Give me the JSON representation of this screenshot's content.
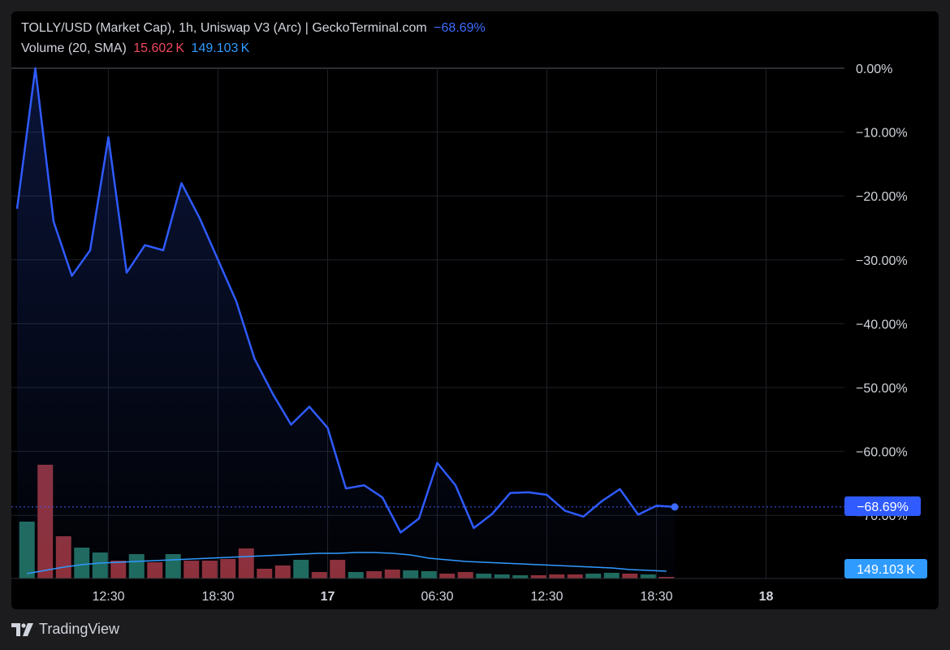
{
  "legend": {
    "title": "TOLLY/USD (Market Cap), 1h, Uniswap V3 (Arc) | GeckoTerminal.com",
    "change": "−68.69%",
    "volume_label": "Volume (20, SMA)",
    "volume_value": "15.602 K",
    "volume_sma": "149.103 K"
  },
  "footer": {
    "brand": "TradingView"
  },
  "badges": {
    "price": "−68.69%",
    "volume": "149.103 K"
  },
  "colors": {
    "line": "#2f5bff",
    "bull": "#1f6b5c",
    "bear": "#8e3038",
    "sma": "#2f9bff",
    "grid": "#1f2128"
  },
  "chart_data": {
    "type": "line",
    "y_ticks": [
      "0.00%",
      "−10.00%",
      "−20.00%",
      "−30.00%",
      "−40.00%",
      "−50.00%",
      "−60.00%",
      "−70.00%"
    ],
    "x_ticks": [
      {
        "label": "12:30",
        "index": 5,
        "bold": false
      },
      {
        "label": "18:30",
        "index": 11,
        "bold": false
      },
      {
        "label": "17",
        "index": 17,
        "bold": true
      },
      {
        "label": "06:30",
        "index": 23,
        "bold": false
      },
      {
        "label": "12:30",
        "index": 29,
        "bold": false
      },
      {
        "label": "18:30",
        "index": 35,
        "bold": false
      },
      {
        "label": "18",
        "index": 41,
        "bold": true
      }
    ],
    "ylim": [
      -80,
      0
    ],
    "series": [
      {
        "values": [
          -22,
          0,
          -24,
          -32.5,
          -28.5,
          -10.8,
          -32,
          -27.7,
          -28.5,
          -18,
          -23.5,
          -30,
          -36.5,
          -45.5,
          -51,
          -55.8,
          -53,
          -56.3,
          -65.8,
          -65.3,
          -67.2,
          -72.7,
          -70.5,
          -61.8,
          -65.3,
          -72,
          -69.8,
          -66.5,
          -66.4,
          -66.8,
          -69.3,
          -70.2,
          -67.8,
          -65.9,
          -69.9,
          -68.5,
          -68.69
        ]
      }
    ],
    "volume": [
      {
        "v": 70,
        "up": true
      },
      {
        "v": 140,
        "up": false
      },
      {
        "v": 52,
        "up": false
      },
      {
        "v": 38,
        "up": true
      },
      {
        "v": 32,
        "up": true
      },
      {
        "v": 22,
        "up": false
      },
      {
        "v": 30,
        "up": true
      },
      {
        "v": 20,
        "up": false
      },
      {
        "v": 30,
        "up": true
      },
      {
        "v": 22,
        "up": false
      },
      {
        "v": 22,
        "up": false
      },
      {
        "v": 24,
        "up": false
      },
      {
        "v": 37,
        "up": false
      },
      {
        "v": 12,
        "up": false
      },
      {
        "v": 16,
        "up": false
      },
      {
        "v": 23,
        "up": true
      },
      {
        "v": 8,
        "up": false
      },
      {
        "v": 23,
        "up": false
      },
      {
        "v": 8,
        "up": true
      },
      {
        "v": 9,
        "up": false
      },
      {
        "v": 11,
        "up": false
      },
      {
        "v": 10,
        "up": true
      },
      {
        "v": 9,
        "up": true
      },
      {
        "v": 6,
        "up": false
      },
      {
        "v": 8,
        "up": false
      },
      {
        "v": 6,
        "up": true
      },
      {
        "v": 5,
        "up": true
      },
      {
        "v": 4,
        "up": true
      },
      {
        "v": 4,
        "up": false
      },
      {
        "v": 5,
        "up": false
      },
      {
        "v": 5,
        "up": false
      },
      {
        "v": 6,
        "up": true
      },
      {
        "v": 7,
        "up": true
      },
      {
        "v": 6,
        "up": false
      },
      {
        "v": 5,
        "up": true
      },
      {
        "v": 2,
        "up": false
      }
    ],
    "volume_sma_curve": [
      6,
      10,
      14,
      17,
      19,
      20,
      21,
      22,
      23,
      24,
      25,
      26,
      27,
      28,
      29,
      30,
      31,
      31,
      32,
      32,
      31,
      29,
      25,
      23,
      21,
      20,
      19,
      18,
      17,
      16,
      15,
      14,
      13,
      11,
      10,
      9
    ]
  }
}
